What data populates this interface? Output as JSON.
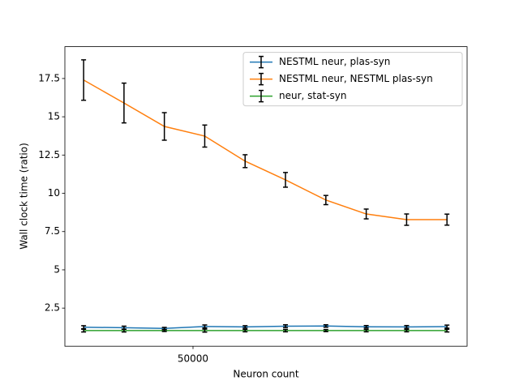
{
  "chart_data": {
    "type": "line",
    "xlabel": "Neuron count",
    "ylabel": "Wall clock time (ratio)",
    "x": [
      25000,
      32290,
      41700,
      53860,
      69560,
      89840,
      116040,
      149870,
      193570,
      250000
    ],
    "xscale": "log",
    "xlim": [
      22200,
      284000
    ],
    "xticks": [
      50000
    ],
    "ylim": [
      0.01,
      19.58
    ],
    "yticks": [
      2.5,
      5,
      7.5,
      10,
      12.5,
      15,
      17.5
    ],
    "yticks_labels": [
      "2.5",
      "5",
      "7.5",
      "10",
      "12.5",
      "15",
      "17.5"
    ],
    "legend": "upper right",
    "errorbar_color": "#000000",
    "series": [
      {
        "name": "NESTML neur, plas-syn",
        "color": "#1f77b4",
        "values": [
          1.25,
          1.22,
          1.17,
          1.3,
          1.27,
          1.32,
          1.33,
          1.28,
          1.27,
          1.29
        ],
        "errors": [
          0.1,
          0.1,
          0.07,
          0.1,
          0.08,
          0.09,
          0.08,
          0.08,
          0.09,
          0.1
        ]
      },
      {
        "name": "NESTML neur, NESTML plas-syn",
        "color": "#ff7f0e",
        "values": [
          17.4,
          15.9,
          14.37,
          13.74,
          12.1,
          10.88,
          9.56,
          8.65,
          8.28,
          8.28
        ],
        "errors": [
          1.32,
          1.3,
          0.9,
          0.72,
          0.42,
          0.48,
          0.3,
          0.32,
          0.37,
          0.36
        ]
      },
      {
        "name": "neur, stat-syn",
        "color": "#2ca02c",
        "values": [
          1.03,
          1.03,
          1.03,
          1.03,
          1.03,
          1.03,
          1.03,
          1.03,
          1.03,
          1.03
        ],
        "errors": [
          0.09,
          0.09,
          0.06,
          0.1,
          0.08,
          0.08,
          0.07,
          0.08,
          0.08,
          0.09
        ]
      }
    ]
  }
}
